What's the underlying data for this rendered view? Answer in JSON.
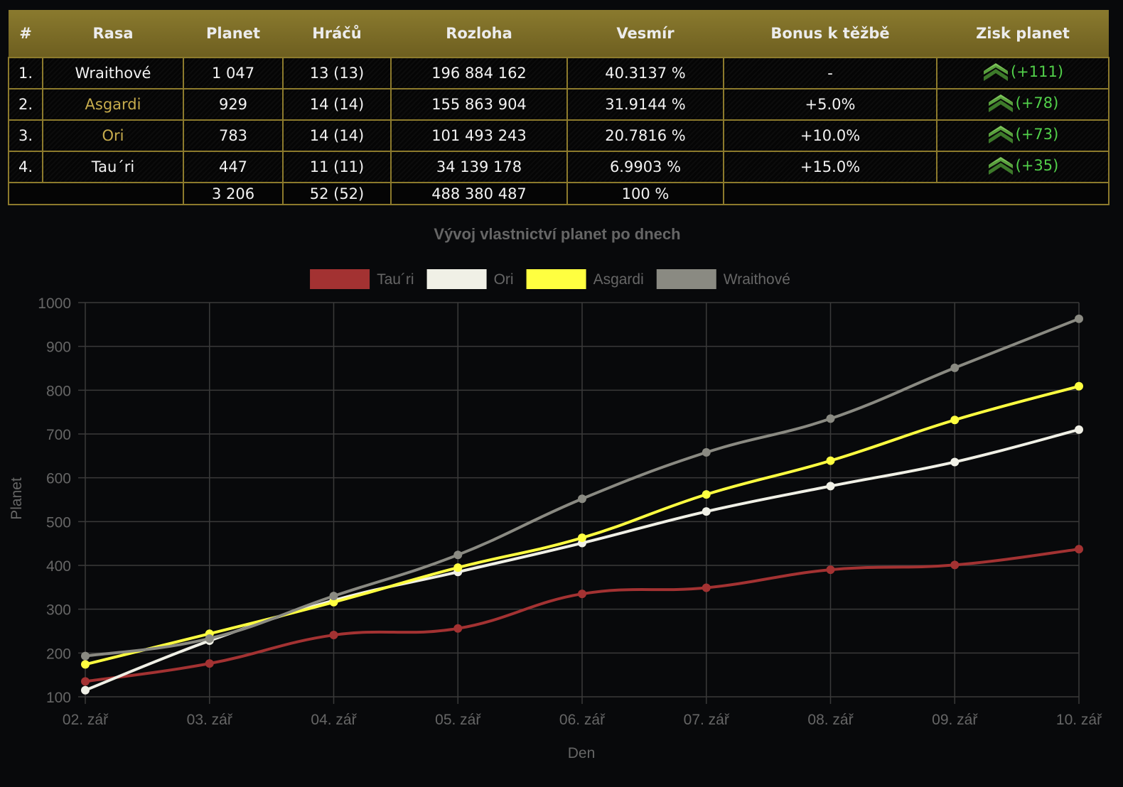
{
  "table": {
    "headers": [
      "#",
      "Rasa",
      "Planet",
      "Hráčů",
      "Rozloha",
      "Vesmír",
      "Bonus k těžbě",
      "Zisk planet"
    ],
    "rows": [
      {
        "rank": "1.",
        "race": "Wraithové",
        "race_color": "#f2f2f2",
        "planets": "1 047",
        "players": "13 (13)",
        "area": "196 884 162",
        "universe": "40.3137 %",
        "bonus": "-",
        "gain": "(+111)"
      },
      {
        "rank": "2.",
        "race": "Asgardi",
        "race_color": "#c7ac4d",
        "planets": "929",
        "players": "14 (14)",
        "area": "155 863 904",
        "universe": "31.9144 %",
        "bonus": "+5.0%",
        "gain": "(+78)"
      },
      {
        "rank": "3.",
        "race": "Ori",
        "race_color": "#c7ac4d",
        "planets": "783",
        "players": "14 (14)",
        "area": "101 493 243",
        "universe": "20.7816 %",
        "bonus": "+10.0%",
        "gain": "(+73)"
      },
      {
        "rank": "4.",
        "race": "Tau´ri",
        "race_color": "#f2f2f2",
        "planets": "447",
        "players": "11 (11)",
        "area": "34 139 178",
        "universe": "6.9903 %",
        "bonus": "+15.0%",
        "gain": "(+35)"
      }
    ],
    "total": {
      "planets": "3 206",
      "players": "52 (52)",
      "area": "488 380 487",
      "universe": "100 %"
    },
    "gain_icon": "green-chevron-rank-icon",
    "colors": {
      "header": "#7d6d27",
      "border": "#8c7a2c",
      "gain": "#52d14a"
    }
  },
  "chart_data": {
    "type": "line",
    "title": "Vývoj vlastnictví planet po dnech",
    "xlabel": "Den",
    "ylabel": "Planet",
    "ylim": [
      100,
      1000
    ],
    "yticks": [
      100,
      200,
      300,
      400,
      500,
      600,
      700,
      800,
      900,
      1000
    ],
    "categories": [
      "02. zář",
      "03. zář",
      "04. zář",
      "05. zář",
      "06. zář",
      "07. zář",
      "08. zář",
      "09. zář",
      "10. zář"
    ],
    "legend": "top-center",
    "grid": true,
    "series": [
      {
        "name": "Tau´ri",
        "color": "#a33232",
        "values": [
          135,
          176,
          241,
          256,
          335,
          349,
          390,
          401,
          437
        ]
      },
      {
        "name": "Ori",
        "color": "#f0f0e6",
        "values": [
          115,
          228,
          320,
          385,
          451,
          523,
          581,
          636,
          710
        ]
      },
      {
        "name": "Asgardi",
        "color": "#ffff40",
        "values": [
          174,
          244,
          316,
          395,
          463,
          562,
          639,
          732,
          809
        ]
      },
      {
        "name": "Wraithové",
        "color": "#8a8a82",
        "values": [
          193,
          233,
          330,
          424,
          552,
          658,
          735,
          851,
          963
        ]
      }
    ]
  }
}
